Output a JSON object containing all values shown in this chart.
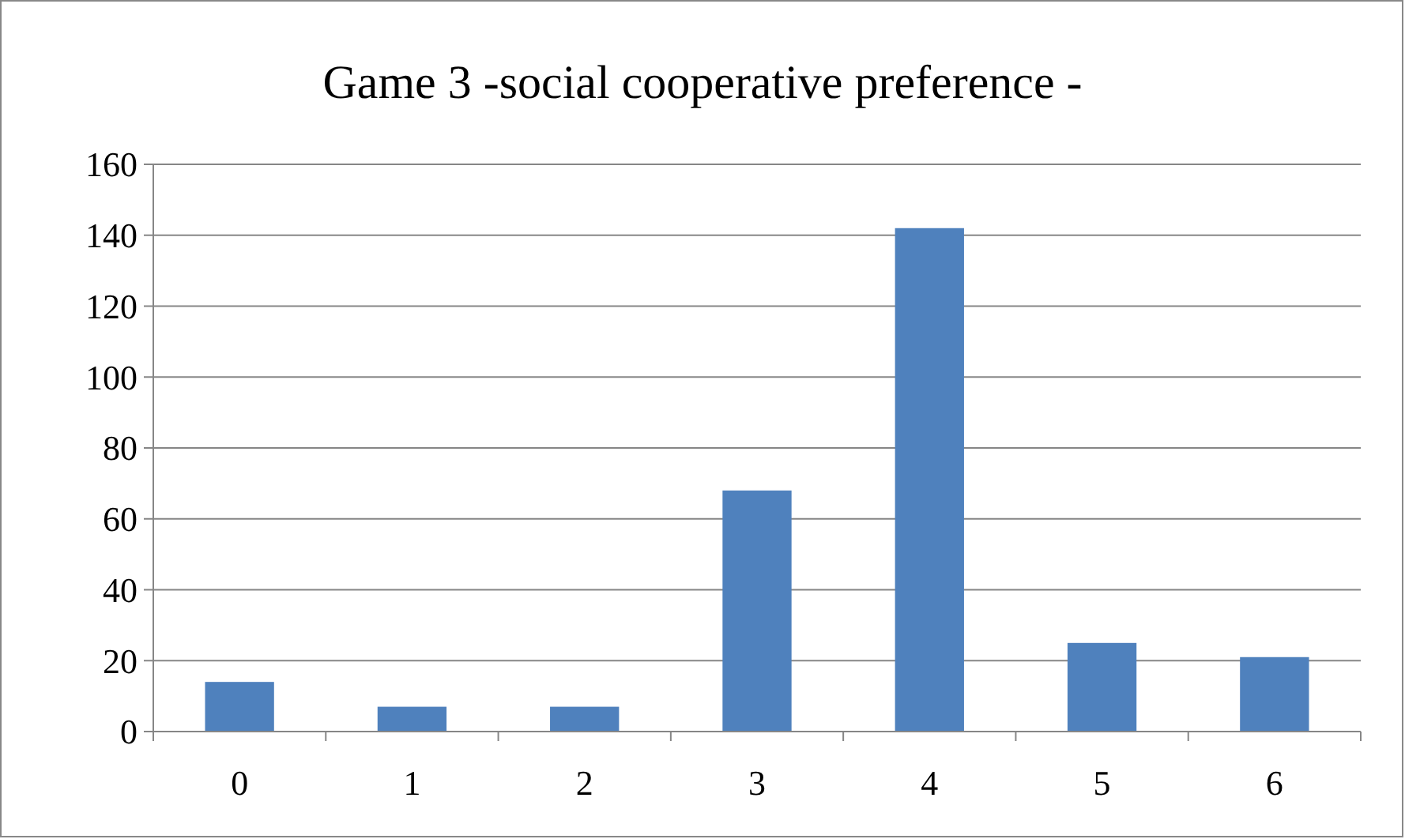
{
  "chart_data": {
    "type": "bar",
    "title": "Game 3 -social cooperative preference -",
    "categories": [
      "0",
      "1",
      "2",
      "3",
      "4",
      "5",
      "6"
    ],
    "values": [
      14,
      7,
      7,
      68,
      142,
      25,
      21
    ],
    "color": "#4f81bd",
    "ylim": [
      0,
      160
    ],
    "yticks": [
      0,
      20,
      40,
      60,
      80,
      100,
      120,
      140,
      160
    ],
    "grid": "y"
  }
}
